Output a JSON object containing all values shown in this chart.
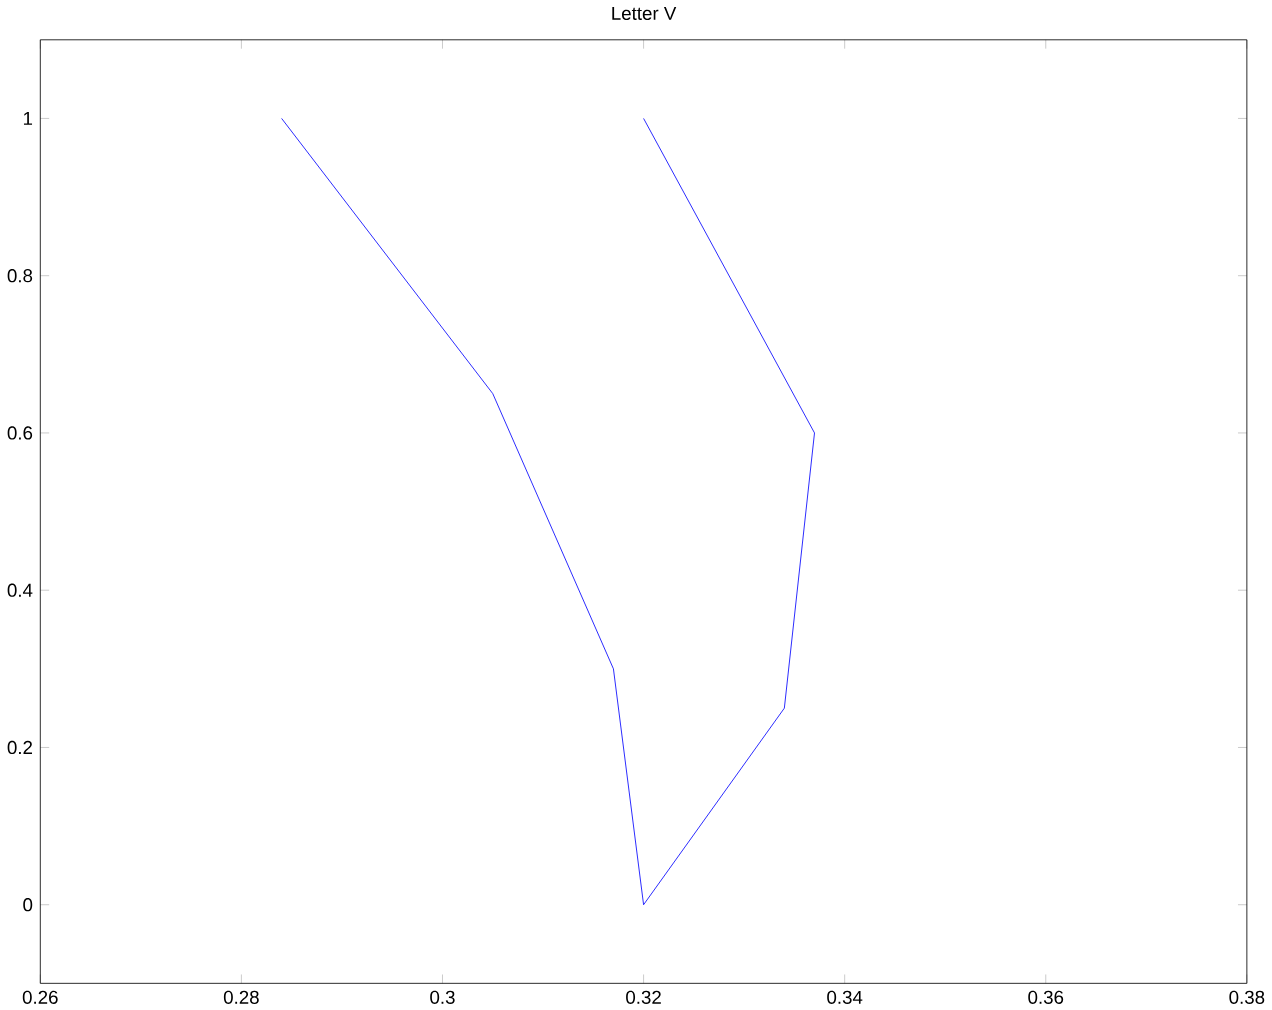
{
  "chart_data": {
    "type": "line",
    "title": "Letter V",
    "series": [
      {
        "color": "#0000ff",
        "x": [
          0.284,
          0.305,
          0.317,
          0.32,
          0.334,
          0.337,
          0.32
        ],
        "values": [
          1,
          0.65,
          0.3,
          0,
          0.25,
          0.6,
          1
        ]
      }
    ],
    "xlim": [
      0.26,
      0.38
    ],
    "xticks": [
      0.26,
      0.28,
      0.3,
      0.32,
      0.34,
      0.36,
      0.38
    ],
    "ylim": [
      -0.1,
      1.1
    ],
    "yticks": [
      0,
      0.2,
      0.4,
      0.6,
      0.8,
      1
    ]
  }
}
